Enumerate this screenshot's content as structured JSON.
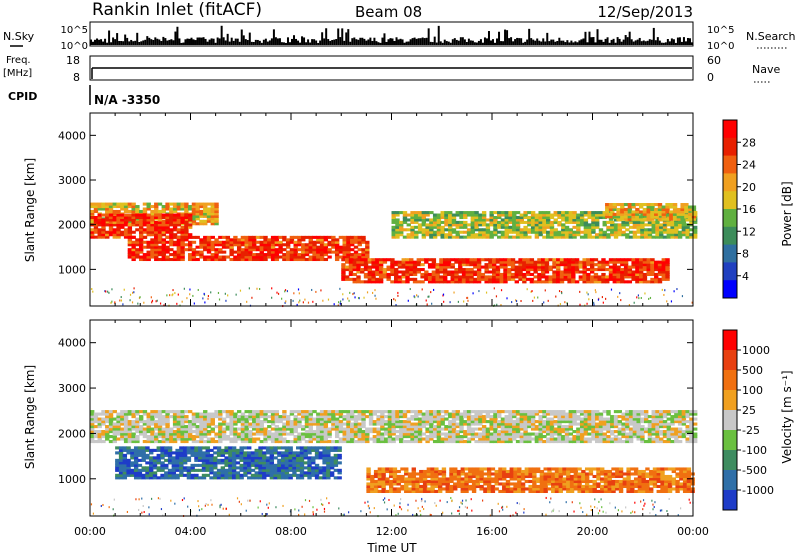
{
  "header": {
    "title": "Rankin Inlet (fitACF)",
    "beam": "Beam 08",
    "date": "12/Sep/2013"
  },
  "top_panels": {
    "nsky_label": "N.Sky",
    "nsky_ticks": [
      "10^5",
      "10^0"
    ],
    "nsearch_label": "N.Search",
    "nsearch_ticks": [
      "10^5",
      "10^0"
    ],
    "freq_label_1": "Freq.",
    "freq_label_2": "[MHz]",
    "freq_ticks": [
      "18",
      "8"
    ],
    "nave_label": "Nave",
    "nave_ticks": [
      "60",
      "0"
    ],
    "cpid_label": "CPID",
    "cpid_value": "N/A -3350"
  },
  "colors": {
    "power_scale": [
      "#0000ff",
      "#2040c0",
      "#2f6fa0",
      "#3c8c5a",
      "#60b040",
      "#e0c020",
      "#f0a020",
      "#f06010",
      "#e82000",
      "#ff0000"
    ],
    "velocity_scale": [
      "#1e3cc8",
      "#2f6fa8",
      "#3e8c60",
      "#6ac040",
      "#c8c8c8",
      "#f0a020",
      "#f07010",
      "#e84010",
      "#ff0000"
    ]
  },
  "chart_data": [
    {
      "type": "heatmap",
      "name": "power",
      "ylabel": "Slant Range [km]",
      "yticks": [
        "4000",
        "3000",
        "2000",
        "1000"
      ],
      "ylim": [
        180,
        4500
      ],
      "xlim": [
        "00:00",
        "24:00"
      ],
      "colorbar_label": "Power [dB]",
      "colorbar_ticks": [
        "28",
        "24",
        "20",
        "16",
        "12",
        "8",
        "4"
      ],
      "colorbar_range": [
        0,
        32
      ],
      "bands": [
        {
          "range_km": [
            2000,
            2450
          ],
          "time_h": [
            0,
            5
          ],
          "level_db": 20
        },
        {
          "range_km": [
            1700,
            2200
          ],
          "time_h": [
            0,
            4
          ],
          "level_db": 28
        },
        {
          "range_km": [
            1200,
            1700
          ],
          "time_h": [
            1.5,
            11
          ],
          "level_db": 28
        },
        {
          "range_km": [
            700,
            1200
          ],
          "time_h": [
            10,
            23
          ],
          "level_db": 28
        },
        {
          "range_km": [
            1700,
            2300
          ],
          "time_h": [
            12,
            24
          ],
          "level_db": 16
        },
        {
          "range_km": [
            2100,
            2450
          ],
          "time_h": [
            20.5,
            24
          ],
          "level_db": 20
        }
      ]
    },
    {
      "type": "heatmap",
      "name": "velocity",
      "ylabel": "Slant Range [km]",
      "yticks": [
        "4000",
        "3000",
        "2000",
        "1000"
      ],
      "ylim": [
        180,
        4500
      ],
      "xlim": [
        "00:00",
        "24:00"
      ],
      "xlabel": "Time UT",
      "xticks": [
        "00:00",
        "04:00",
        "08:00",
        "12:00",
        "16:00",
        "20:00",
        "00:00"
      ],
      "colorbar_label": "Velocity [m s⁻¹]",
      "colorbar_ticks": [
        "1000",
        "500",
        "100",
        "25",
        "-25",
        "-100",
        "-500",
        "-1000"
      ],
      "bands": [
        {
          "range_km": [
            1800,
            2500
          ],
          "time_h": [
            0,
            24
          ],
          "velocity": "0"
        },
        {
          "range_km": [
            1000,
            1700
          ],
          "time_h": [
            1,
            10
          ],
          "velocity": "500"
        },
        {
          "range_km": [
            700,
            1200
          ],
          "time_h": [
            11,
            24
          ],
          "velocity": "-500"
        }
      ]
    }
  ],
  "x_axis": {
    "label": "Time UT",
    "ticks": [
      "00:00",
      "04:00",
      "08:00",
      "12:00",
      "16:00",
      "20:00",
      "00:00"
    ]
  }
}
